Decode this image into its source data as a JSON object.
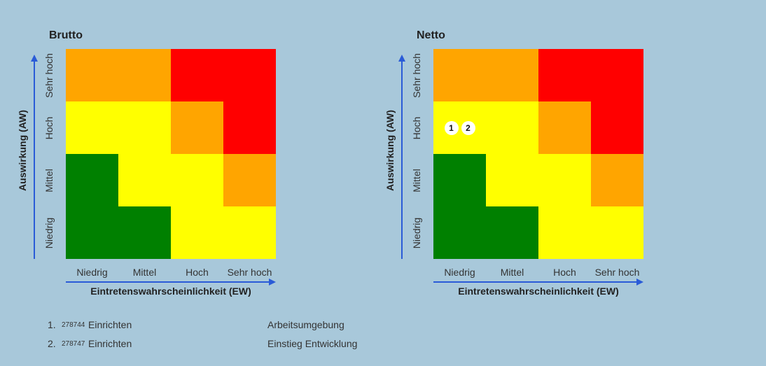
{
  "colors": {
    "background": "#a8c8da",
    "axis": "#2a5bd7",
    "green": "#008000",
    "yellow": "#ffff00",
    "orange": "#ffa500",
    "red": "#ff0000"
  },
  "chart_data": [
    {
      "type": "heatmap",
      "title": "Brutto",
      "xlabel": "Eintretenswahrscheinlichkeit (EW)",
      "ylabel": "Auswirkung (AW)",
      "x_categories": [
        "Niedrig",
        "Mittel",
        "Hoch",
        "Sehr hoch"
      ],
      "y_categories": [
        "Niedrig",
        "Mittel",
        "Hoch",
        "Sehr hoch"
      ],
      "cells_top_to_bottom": [
        [
          "orange",
          "orange",
          "red",
          "red"
        ],
        [
          "yellow",
          "yellow",
          "orange",
          "red"
        ],
        [
          "green",
          "yellow",
          "yellow",
          "orange"
        ],
        [
          "green",
          "green",
          "yellow",
          "yellow"
        ]
      ],
      "markers": []
    },
    {
      "type": "heatmap",
      "title": "Netto",
      "xlabel": "Eintretenswahrscheinlichkeit (EW)",
      "ylabel": "Auswirkung (AW)",
      "x_categories": [
        "Niedrig",
        "Mittel",
        "Hoch",
        "Sehr hoch"
      ],
      "y_categories": [
        "Niedrig",
        "Mittel",
        "Hoch",
        "Sehr hoch"
      ],
      "cells_top_to_bottom": [
        [
          "orange",
          "orange",
          "red",
          "red"
        ],
        [
          "yellow",
          "yellow",
          "orange",
          "red"
        ],
        [
          "green",
          "yellow",
          "yellow",
          "orange"
        ],
        [
          "green",
          "green",
          "yellow",
          "yellow"
        ]
      ],
      "markers": [
        {
          "label": "1",
          "x": "Niedrig",
          "y": "Hoch"
        },
        {
          "label": "2",
          "x": "Niedrig",
          "y": "Hoch"
        }
      ]
    }
  ],
  "legend": [
    {
      "number": "1.",
      "id": "278744",
      "name": "Einrichten",
      "area": "Arbeitsumgebung"
    },
    {
      "number": "2.",
      "id": "278747",
      "name": "Einrichten",
      "area": "Einstieg Entwicklung"
    }
  ]
}
